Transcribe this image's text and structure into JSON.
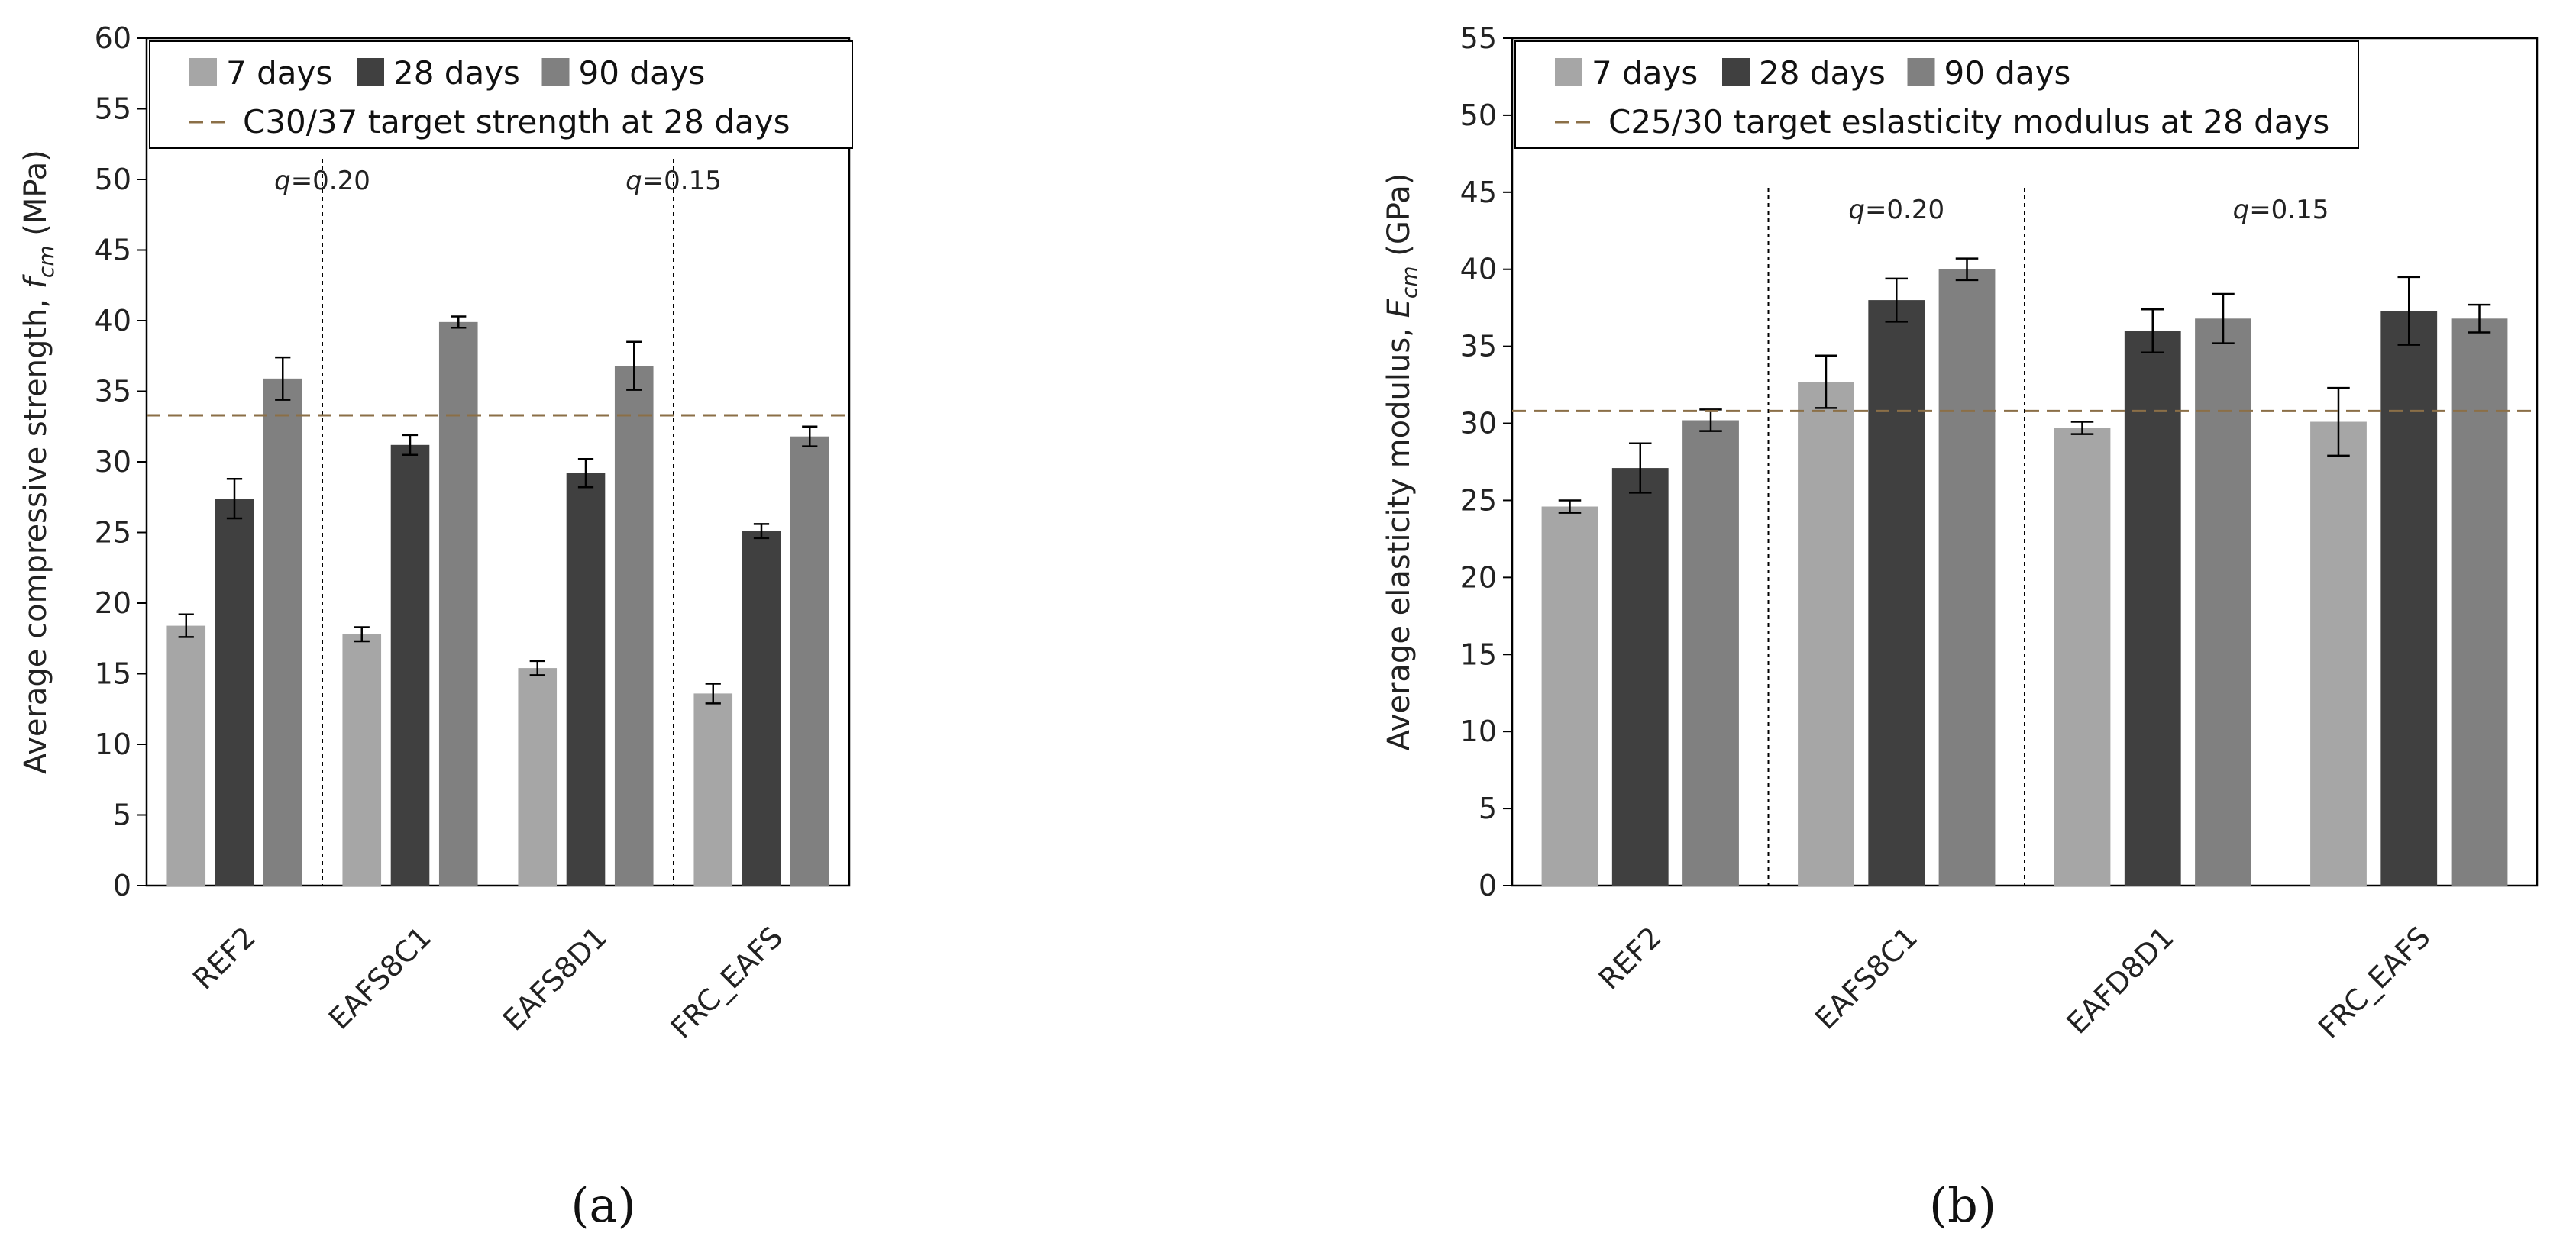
{
  "colors": {
    "series_7d": "#a6a6a6",
    "series_28d": "#404040",
    "series_90d": "#808080",
    "target_line": "#8b6f47",
    "axis": "#000000"
  },
  "chart_data": [
    {
      "type": "bar",
      "panel_label": "(a)",
      "ylabel_main": "Average compressive strength,",
      "ylabel_sym": "f",
      "ylabel_sub": "cm",
      "ylabel_unit": " (MPa)",
      "ylim": [
        0,
        60
      ],
      "ytick_step": 5,
      "categories": [
        "REF2",
        "EAFS8C1",
        "EAFS8D1",
        "FRC_EAFS"
      ],
      "series": [
        {
          "name": "7 days",
          "values": [
            18.4,
            17.8,
            15.4,
            13.6
          ],
          "errors": [
            0.8,
            0.5,
            0.5,
            0.7
          ]
        },
        {
          "name": "28 days",
          "values": [
            27.4,
            31.2,
            29.2,
            25.1
          ],
          "errors": [
            1.4,
            0.7,
            1.0,
            0.5
          ]
        },
        {
          "name": "90 days",
          "values": [
            35.9,
            39.9,
            36.8,
            31.8
          ],
          "errors": [
            1.5,
            0.4,
            1.7,
            0.7
          ]
        }
      ],
      "reference_line": {
        "value": 33.3,
        "label": "C30/37 target strength at 28 days"
      },
      "group_annotations": [
        {
          "text_sym": "q",
          "text_val": "=0.20",
          "between": [
            0,
            2
          ]
        },
        {
          "text_sym": "q",
          "text_val": "=0.15",
          "between": [
            2,
            4
          ]
        }
      ],
      "dividers_after": [
        0,
        2
      ]
    },
    {
      "type": "bar",
      "panel_label": "(b)",
      "ylabel_main": "Average elasticity modulus,",
      "ylabel_sym": "E",
      "ylabel_sub": "cm",
      "ylabel_unit": " (GPa)",
      "ylim": [
        0,
        55
      ],
      "ytick_step": 5,
      "categories": [
        "REF2",
        "EAFS8C1",
        "EAFD8D1",
        "FRC_EAFS"
      ],
      "series": [
        {
          "name": "7 days",
          "values": [
            24.6,
            32.7,
            29.7,
            30.1
          ],
          "errors": [
            0.4,
            1.7,
            0.4,
            2.2
          ]
        },
        {
          "name": "28 days",
          "values": [
            27.1,
            38.0,
            36.0,
            37.3
          ],
          "errors": [
            1.6,
            1.4,
            1.4,
            2.2
          ]
        },
        {
          "name": "90 days",
          "values": [
            30.2,
            40.0,
            36.8,
            36.8
          ],
          "errors": [
            0.7,
            0.7,
            1.6,
            0.9
          ]
        }
      ],
      "reference_line": {
        "value": 30.8,
        "label": "C25/30 target eslasticity modulus at 28 days"
      },
      "group_annotations": [
        {
          "text_sym": "q",
          "text_val": "=0.20",
          "between": [
            1,
            2
          ]
        },
        {
          "text_sym": "q",
          "text_val": "=0.15",
          "between": [
            2,
            4
          ]
        }
      ],
      "dividers_after": [
        0,
        1
      ]
    }
  ]
}
